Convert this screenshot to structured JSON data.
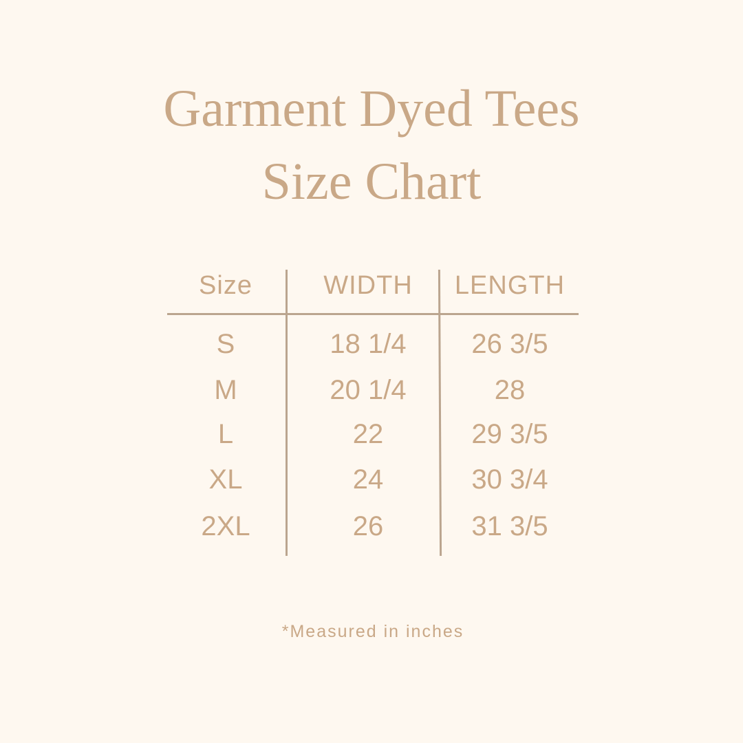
{
  "title": {
    "line1": "Garment Dyed Tees",
    "line2": "Size Chart"
  },
  "colors": {
    "background": "#fef8f0",
    "text": "#c9a887",
    "lines": "#bba58f"
  },
  "table": {
    "headers": [
      "Size",
      "WIDTH",
      "LENGTH"
    ],
    "rows": [
      [
        "S",
        "18 1/4",
        "26 3/5"
      ],
      [
        "M",
        "20 1/4",
        "28"
      ],
      [
        "L",
        "22",
        "29 3/5"
      ],
      [
        "XL",
        "24",
        "30 3/4"
      ],
      [
        "2XL",
        "26",
        "31 3/5"
      ]
    ]
  },
  "footnote": "*Measured in inches"
}
